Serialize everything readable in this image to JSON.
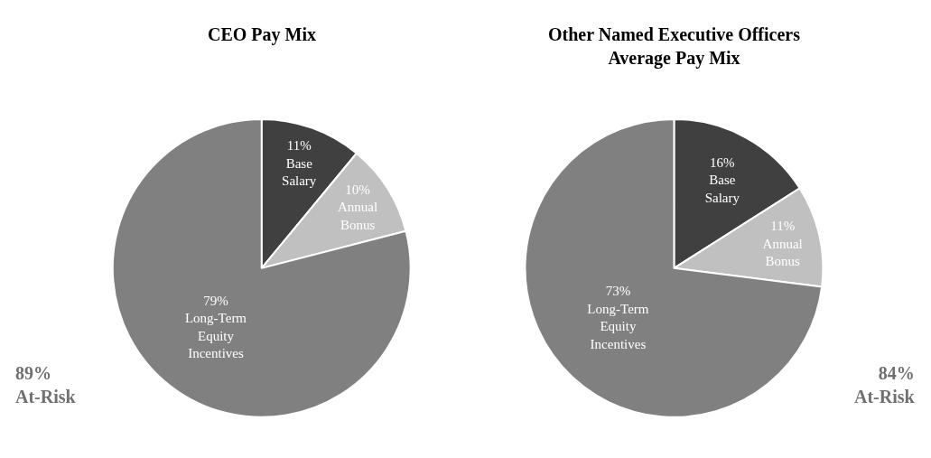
{
  "chart_data": [
    {
      "type": "pie",
      "title": "CEO Pay Mix",
      "categories": [
        "Base\nSalary",
        "Annual\nBonus",
        "Long-Term\nEquity\nIncentives"
      ],
      "values": [
        11,
        10,
        79
      ],
      "value_labels": [
        "11%",
        "10%",
        "79%"
      ],
      "colors": [
        "#404040",
        "#c0c0c0",
        "#808080"
      ],
      "annotations": [
        "89%\nAt-Risk"
      ]
    },
    {
      "type": "pie",
      "title": "Other Named Executive Officers\nAverage Pay Mix",
      "categories": [
        "Base\nSalary",
        "Annual\nBonus",
        "Long-Term\nEquity\nIncentives"
      ],
      "values": [
        16,
        11,
        73
      ],
      "value_labels": [
        "16%",
        "11%",
        "73%"
      ],
      "colors": [
        "#404040",
        "#c0c0c0",
        "#808080"
      ],
      "annotations": [
        "84%\nAt-Risk"
      ]
    }
  ]
}
